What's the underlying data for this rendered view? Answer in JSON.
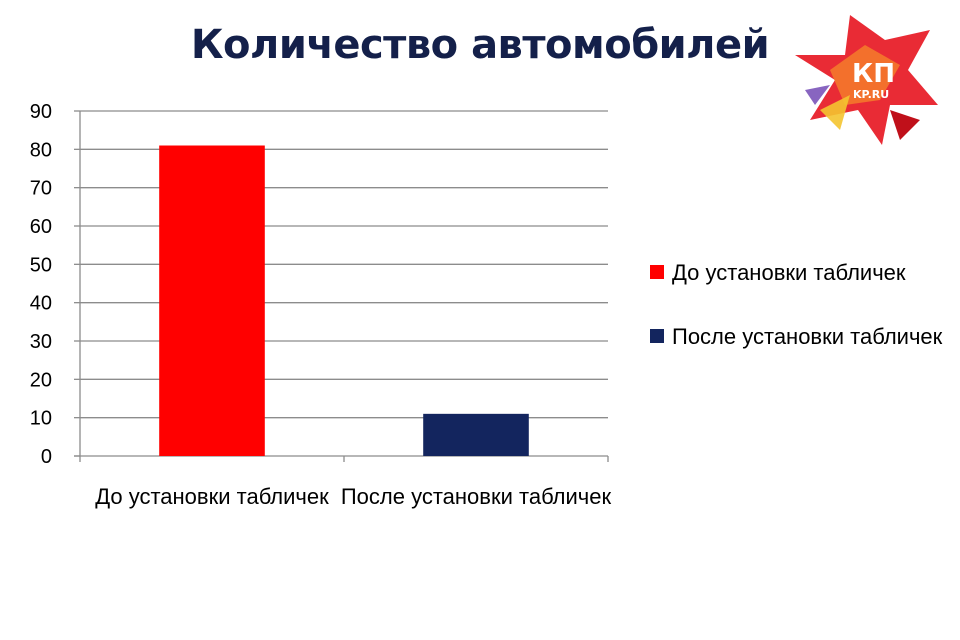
{
  "chart_data": {
    "type": "bar",
    "title": "Количество автомобилей",
    "categories": [
      "До установки табличек",
      "После установки табличек"
    ],
    "values": [
      81,
      11
    ],
    "colors": [
      "#ff0000",
      "#13255e"
    ],
    "ylim": [
      0,
      90
    ],
    "yticks": [
      0,
      10,
      20,
      30,
      40,
      50,
      60,
      70,
      80,
      90
    ],
    "grid": true,
    "legend_position": "right",
    "xlabel": "",
    "ylabel": ""
  },
  "legend": [
    {
      "label": "До установки табличек",
      "color": "#ff0000"
    },
    {
      "label": "После установки табличек",
      "color": "#13255e"
    }
  ],
  "logo": {
    "text": "КП",
    "subtext": "KP.RU",
    "color": "#e8202a"
  }
}
